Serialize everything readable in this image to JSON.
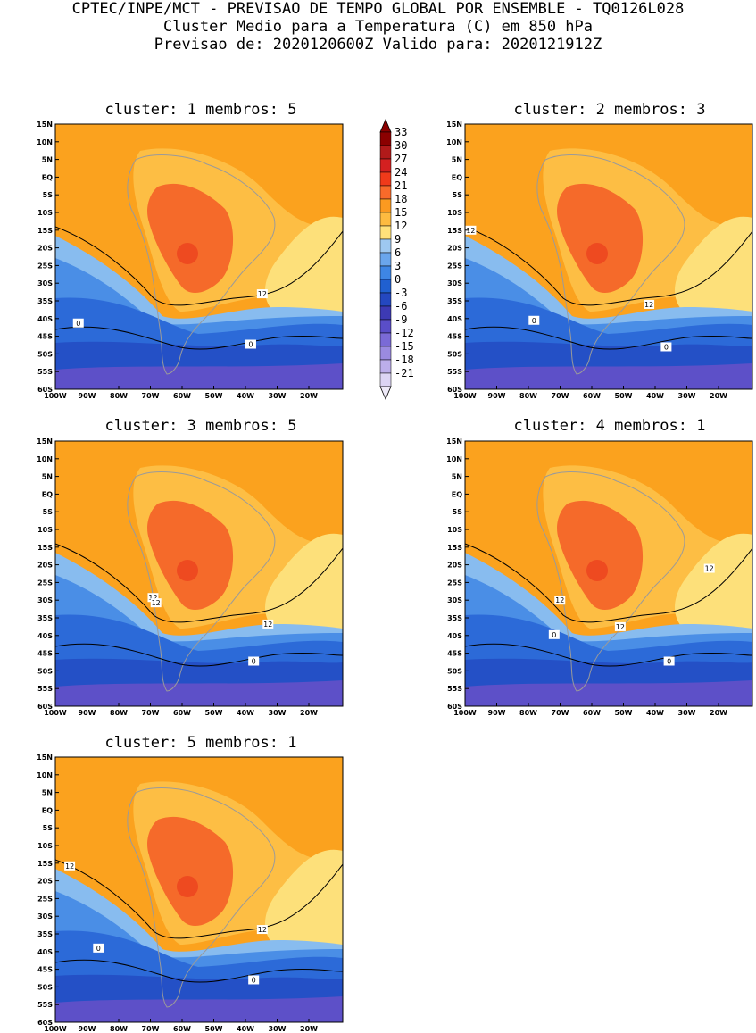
{
  "header": {
    "line1": "CPTEC/INPE/MCT - PREVISAO DE TEMPO GLOBAL POR ENSEMBLE - TQ0126L028",
    "line2": "Cluster Medio para a Temperatura (C) em 850 hPa",
    "line3": "Previsao de: 2020120600Z   Valido para: 2020121912Z"
  },
  "lat_labels": [
    "15N",
    "10N",
    "5N",
    "EQ",
    "5S",
    "10S",
    "15S",
    "20S",
    "25S",
    "30S",
    "35S",
    "40S",
    "45S",
    "50S",
    "55S",
    "60S"
  ],
  "lon_labels": [
    "100W",
    "90W",
    "80W",
    "70W",
    "60W",
    "50W",
    "40W",
    "30W",
    "20W"
  ],
  "panels": [
    {
      "title": "cluster: 1   membros: 5",
      "labels": [
        "12",
        "0",
        "0"
      ]
    },
    {
      "title": "cluster: 2   membros: 3",
      "labels": [
        "12",
        "12",
        "0",
        "0"
      ]
    },
    {
      "title": "cluster: 3   membros: 5",
      "labels": [
        "12",
        "12",
        "12",
        "0"
      ]
    },
    {
      "title": "cluster: 4   membros: 1",
      "labels": [
        "12",
        "12",
        "12",
        "0",
        "0"
      ]
    },
    {
      "title": "cluster: 5   membros: 1",
      "labels": [
        "12",
        "12",
        "0",
        "0"
      ]
    }
  ],
  "colorbar": {
    "labels": [
      "33",
      "30",
      "27",
      "24",
      "21",
      "18",
      "15",
      "12",
      "9",
      "6",
      "3",
      "0",
      "-3",
      "-6",
      "-9",
      "-12",
      "-15",
      "-18",
      "-21"
    ],
    "colors": [
      "#8b0000",
      "#b11a1a",
      "#d42020",
      "#f03a1a",
      "#f86a2a",
      "#fb9a20",
      "#fdbb40",
      "#ffe17a",
      "#9ec8f0",
      "#6aa6ec",
      "#3e86e4",
      "#2060d0",
      "#2448c0",
      "#3d3ab4",
      "#5a4ec8",
      "#7a6ad6",
      "#9a8ae0",
      "#bcaeea",
      "#dcd4f4"
    ]
  },
  "colors": {
    "orange": "#fba21e",
    "light_orange": "#fdbe44",
    "yellow": "#fde07a",
    "red_orange": "#f56a2a",
    "red": "#ee4a20",
    "light_blue": "#88bcef",
    "blue": "#4a8ee6",
    "mid_blue": "#2c6ad8",
    "dark_blue": "#2450c6",
    "purple": "#5d50c8",
    "gray": "#9a9a9a"
  }
}
